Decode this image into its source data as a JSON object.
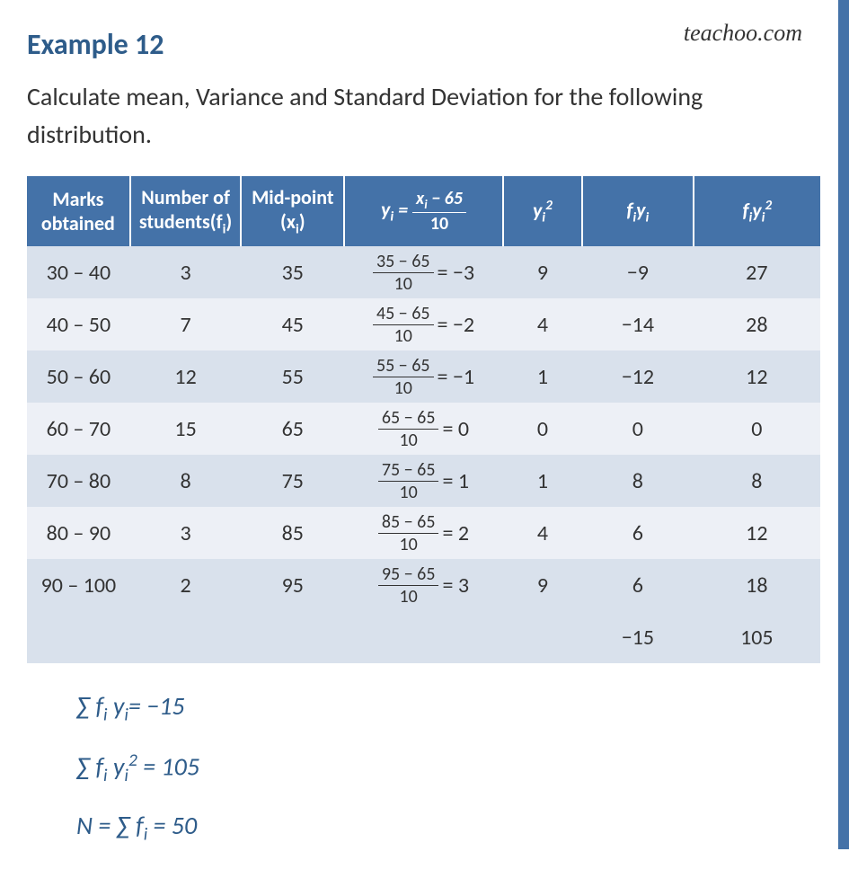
{
  "watermark": "teachoo.com",
  "title": "Example 12",
  "problem": "Calculate mean, Variance and Standard Deviation for the following distribution.",
  "table": {
    "header_bg": "#4472a8",
    "header_color": "#ffffff",
    "row_odd_bg": "#d9e1ec",
    "row_even_bg": "#edf0f6",
    "columns": {
      "marks": "Marks obtained",
      "freq": "Number of students(f",
      "freq_sub": "i",
      "freq_close": ")",
      "mid": "Mid-point (x",
      "mid_sub": "i",
      "mid_close": ")",
      "yi_lhs": "y",
      "yi_sub": "i",
      "yi_eq": " = ",
      "yi_num": "x",
      "yi_num_sub": "i",
      "yi_num_rest": " − 65",
      "yi_den": "10",
      "yi2": "y",
      "yi2_sub": "i",
      "yi2_sup": "2",
      "fiyi_f": "f",
      "fiyi_i": "i",
      "fiyi_y": "y",
      "fiyi_i2": "i",
      "fiyi2_f": "f",
      "fiyi2_i": "i",
      "fiyi2_y": "y",
      "fiyi2_i2": "i",
      "fiyi2_sup": "2"
    },
    "rows": [
      {
        "marks": "30 – 40",
        "fi": "3",
        "xi": "35",
        "yi_num": "35 − 65",
        "yi_den": "10",
        "yi_res": "= −3",
        "yi2": "9",
        "fiyi": "−9",
        "fiyi2": "27"
      },
      {
        "marks": "40 – 50",
        "fi": "7",
        "xi": "45",
        "yi_num": "45 − 65",
        "yi_den": "10",
        "yi_res": "= −2",
        "yi2": "4",
        "fiyi": "−14",
        "fiyi2": "28"
      },
      {
        "marks": "50 – 60",
        "fi": "12",
        "xi": "55",
        "yi_num": "55 − 65",
        "yi_den": "10",
        "yi_res": "= −1",
        "yi2": "1",
        "fiyi": "−12",
        "fiyi2": "12"
      },
      {
        "marks": "60 – 70",
        "fi": "15",
        "xi": "65",
        "yi_num": "65 − 65",
        "yi_den": "10",
        "yi_res": "=  0",
        "yi2": "0",
        "fiyi": "0",
        "fiyi2": "0"
      },
      {
        "marks": "70 – 80",
        "fi": "8",
        "xi": "75",
        "yi_num": "75 − 65",
        "yi_den": "10",
        "yi_res": "=  1",
        "yi2": "1",
        "fiyi": "8",
        "fiyi2": "8"
      },
      {
        "marks": "80 – 90",
        "fi": "3",
        "xi": "85",
        "yi_num": "85 − 65",
        "yi_den": "10",
        "yi_res": "=  2",
        "yi2": "4",
        "fiyi": "6",
        "fiyi2": "12"
      },
      {
        "marks": "90 – 100",
        "fi": "2",
        "xi": "95",
        "yi_num": "95 − 65",
        "yi_den": "10",
        "yi_res": "=  3",
        "yi2": "9",
        "fiyi": "6",
        "fiyi2": "18"
      }
    ],
    "totals": {
      "fiyi": "−15",
      "fiyi2": "105"
    }
  },
  "formulas": {
    "f1_a": "∑ f",
    "f1_b": "i",
    "f1_c": " y",
    "f1_d": "i",
    "f1_e": "= −15",
    "f2_a": "∑ f",
    "f2_b": "i",
    "f2_c": " y",
    "f2_d": "i",
    "f2_e": "2",
    "f2_f": " = 105",
    "f3_a": "N = ∑ f",
    "f3_b": "i",
    "f3_c": " = 50"
  }
}
